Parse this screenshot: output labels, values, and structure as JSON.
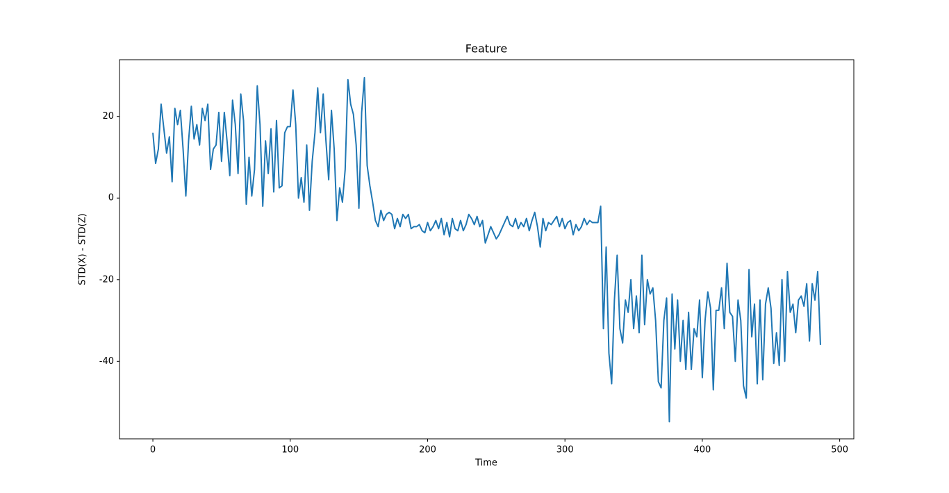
{
  "chart_data": {
    "type": "line",
    "title": "Feature",
    "x_label": "Time",
    "y_label": "STD(X) - STD(Z)",
    "color": "#1f77b4",
    "xlim": [
      -24.3,
      510.3
    ],
    "ylim": [
      -59,
      33.9
    ],
    "xticks": [
      0,
      100,
      200,
      300,
      400,
      500
    ],
    "yticks": [
      -40,
      -20,
      0,
      20
    ],
    "x": [
      0,
      2,
      4,
      6,
      8,
      10,
      12,
      14,
      16,
      18,
      20,
      22,
      24,
      26,
      28,
      30,
      32,
      34,
      36,
      38,
      40,
      42,
      44,
      46,
      48,
      50,
      52,
      54,
      56,
      58,
      60,
      62,
      64,
      66,
      68,
      70,
      72,
      74,
      76,
      78,
      80,
      82,
      84,
      86,
      88,
      90,
      92,
      94,
      96,
      98,
      100,
      102,
      104,
      106,
      108,
      110,
      112,
      114,
      116,
      118,
      120,
      122,
      124,
      126,
      128,
      130,
      132,
      134,
      136,
      138,
      140,
      142,
      144,
      146,
      148,
      150,
      152,
      154,
      156,
      158,
      160,
      162,
      164,
      166,
      168,
      170,
      172,
      174,
      176,
      178,
      180,
      182,
      184,
      186,
      188,
      190,
      192,
      194,
      196,
      198,
      200,
      202,
      204,
      206,
      208,
      210,
      212,
      214,
      216,
      218,
      220,
      222,
      224,
      226,
      228,
      230,
      232,
      234,
      236,
      238,
      240,
      242,
      244,
      246,
      248,
      250,
      252,
      254,
      256,
      258,
      260,
      262,
      264,
      266,
      268,
      270,
      272,
      274,
      276,
      278,
      280,
      282,
      284,
      286,
      288,
      290,
      292,
      294,
      296,
      298,
      300,
      302,
      304,
      306,
      308,
      310,
      312,
      314,
      316,
      318,
      320,
      322,
      324,
      326,
      328,
      330,
      332,
      334,
      336,
      338,
      340,
      342,
      344,
      346,
      348,
      350,
      352,
      354,
      356,
      358,
      360,
      362,
      364,
      366,
      368,
      370,
      372,
      374,
      376,
      378,
      380,
      382,
      384,
      386,
      388,
      390,
      392,
      394,
      396,
      398,
      400,
      402,
      404,
      406,
      408,
      410,
      412,
      414,
      416,
      418,
      420,
      422,
      424,
      426,
      428,
      430,
      432,
      434,
      436,
      438,
      440,
      442,
      444,
      446,
      448,
      450,
      452,
      454,
      456,
      458,
      460,
      462,
      464,
      466,
      468,
      470,
      472,
      474,
      476,
      478,
      480,
      482,
      484,
      486
    ],
    "values": [
      16,
      8.5,
      12,
      23,
      17,
      11,
      15,
      4,
      22,
      18,
      21.5,
      12,
      0.5,
      14,
      22.5,
      14.5,
      18,
      13,
      22,
      19,
      23,
      7,
      12,
      13,
      21,
      9,
      21,
      14,
      5.5,
      24,
      18,
      6,
      25.5,
      19,
      -1.5,
      10,
      0.5,
      7,
      27.5,
      18,
      -2,
      14,
      6,
      17,
      1.5,
      19,
      2.5,
      3,
      16,
      17.5,
      17.5,
      26.5,
      18,
      0,
      5,
      -1,
      13,
      -3,
      9,
      16,
      27,
      16,
      25.5,
      14,
      4.5,
      21.5,
      12,
      -5.5,
      2.5,
      -1,
      7,
      29,
      23,
      20.5,
      13,
      -2.5,
      21,
      29.5,
      8,
      3,
      -1,
      -5.5,
      -7,
      -3,
      -5.5,
      -4,
      -3.5,
      -4,
      -7.5,
      -5,
      -7,
      -4,
      -5,
      -4,
      -7.5,
      -7,
      -7,
      -6.5,
      -8,
      -8.5,
      -6,
      -8,
      -7,
      -5.5,
      -7.5,
      -5,
      -9,
      -6,
      -9.5,
      -5,
      -7.5,
      -8,
      -5.5,
      -8,
      -6.5,
      -4,
      -5,
      -6.5,
      -4.5,
      -7,
      -5.5,
      -11,
      -9,
      -7,
      -8.5,
      -10,
      -9,
      -7.5,
      -6,
      -4.5,
      -6.5,
      -7,
      -5,
      -7.5,
      -6,
      -7,
      -5,
      -8,
      -5.5,
      -3.5,
      -7,
      -12,
      -5,
      -8,
      -6,
      -6.5,
      -5.5,
      -4.5,
      -7,
      -5,
      -7.5,
      -6,
      -5.5,
      -9,
      -6.5,
      -8,
      -7,
      -5,
      -6.5,
      -5.5,
      -6,
      -6,
      -6,
      -2,
      -32,
      -12,
      -38,
      -45.5,
      -25,
      -14,
      -32,
      -35.5,
      -25,
      -28,
      -20,
      -32,
      -24,
      -33,
      -14,
      -31,
      -20,
      -23.5,
      -22,
      -30,
      -45,
      -46.5,
      -30,
      -24.5,
      -54.8,
      -23.5,
      -37,
      -25,
      -40,
      -30,
      -42,
      -28,
      -42,
      -32,
      -34,
      -25,
      -44,
      -30,
      -23,
      -27,
      -47,
      -27.5,
      -27.5,
      -22,
      -32,
      -16,
      -28,
      -29,
      -40,
      -25,
      -30,
      -46,
      -49,
      -17.5,
      -34,
      -26,
      -45.5,
      -25,
      -44.5,
      -26,
      -22,
      -27,
      -40.5,
      -33,
      -41,
      -20,
      -40,
      -18,
      -28,
      -26,
      -33,
      -25,
      -24,
      -26.5,
      -21,
      -35,
      -21,
      -25,
      -18,
      -36
    ]
  }
}
